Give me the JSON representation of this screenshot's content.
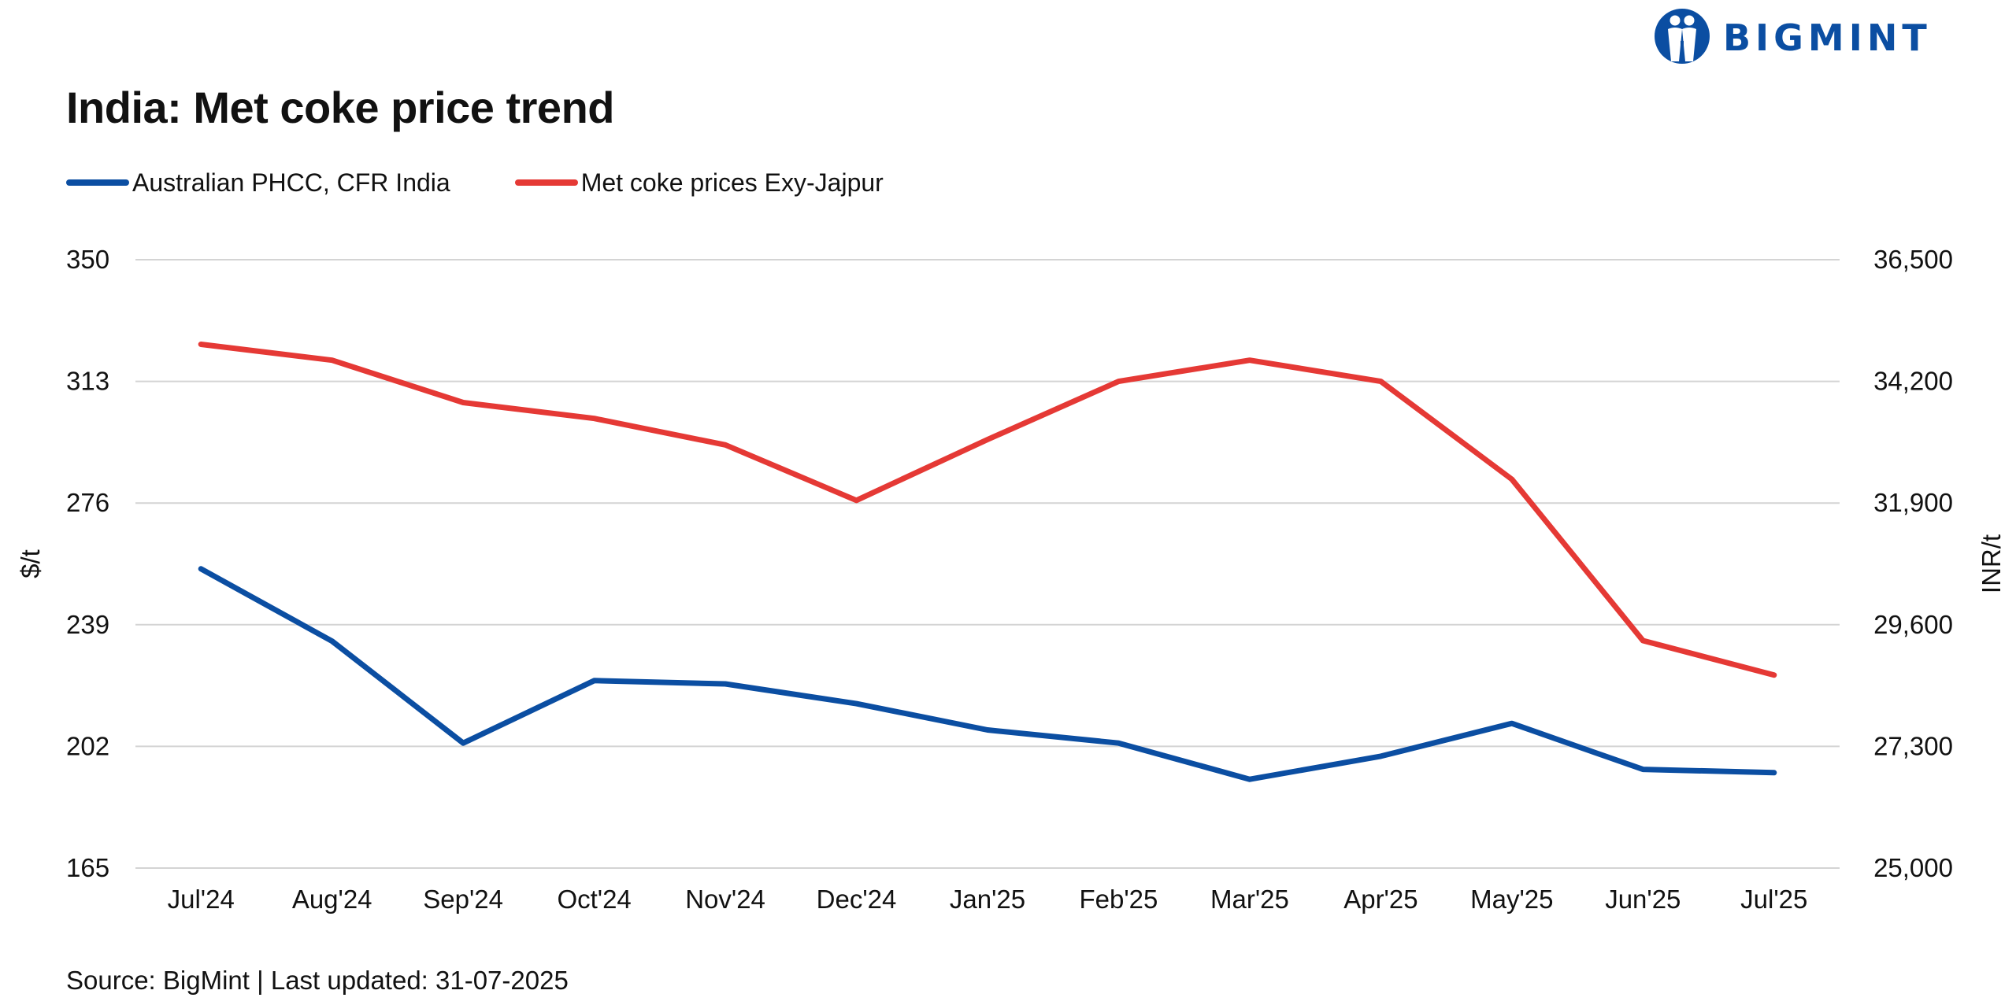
{
  "brand": {
    "name": "BIGMINT",
    "color": "#0B4EA2"
  },
  "chart_data": {
    "type": "line",
    "title": "India: Met coke price trend",
    "categories": [
      "Jul'24",
      "Aug'24",
      "Sep'24",
      "Oct'24",
      "Nov'24",
      "Dec'24",
      "Jan'25",
      "Feb'25",
      "Mar'25",
      "Apr'25",
      "May'25",
      "Jun'25",
      "Jul'25"
    ],
    "left_axis": {
      "label": "$/t",
      "range": [
        165,
        350
      ],
      "ticks": [
        "165",
        "202",
        "239",
        "276",
        "313",
        "350"
      ]
    },
    "right_axis": {
      "label": "INR/t",
      "range": [
        25000,
        36500
      ],
      "ticks": [
        "25,000",
        "27,300",
        "29,600",
        "31,900",
        "34,200",
        "36,500"
      ]
    },
    "series": [
      {
        "name": "Australian PHCC, CFR India",
        "axis": "left",
        "color": "#0B4EA2",
        "values": [
          256,
          234,
          203,
          222,
          221,
          215,
          207,
          203,
          192,
          199,
          209,
          195,
          194
        ]
      },
      {
        "name": "Met coke prices Exy-Jajpur",
        "axis": "right",
        "color": "#E53935",
        "values": [
          34900,
          34600,
          33800,
          33500,
          33000,
          31950,
          33100,
          34200,
          34600,
          34200,
          32350,
          29300,
          28650
        ]
      }
    ],
    "grid": true,
    "legend_position": "top-left"
  },
  "footer": {
    "source": "Source: BigMint | Last updated: 31-07-2025"
  }
}
